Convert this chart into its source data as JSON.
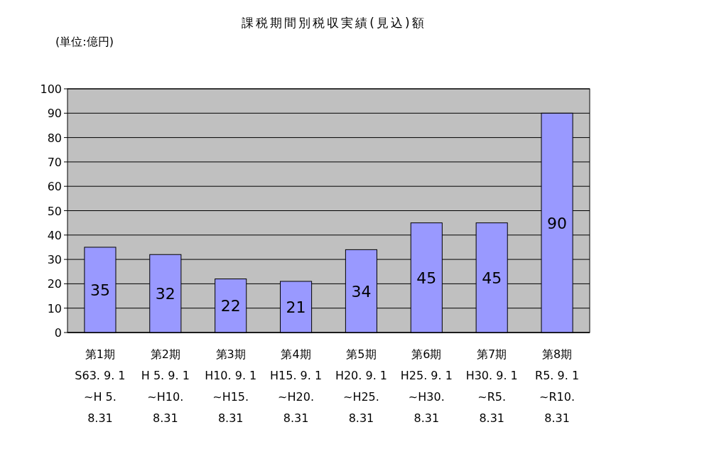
{
  "chart_data": {
    "type": "bar",
    "title": "課税期間別税収実績(見込)額",
    "ylabel": "(単位:億円)",
    "categories": [
      "第1期\nS63. 9. 1\n~H 5.\n8.31",
      "第2期\nH 5. 9. 1\n~H10.\n8.31",
      "第3期\nH10. 9. 1\n~H15.\n8.31",
      "第4期\nH15. 9. 1\n~H20.\n8.31",
      "第5期\nH20. 9. 1\n~H25.\n8.31",
      "第6期\nH25. 9. 1\n~H30.\n8.31",
      "第7期\nH30. 9. 1\n~R5.\n8.31",
      "第8期\nR5. 9. 1\n~R10.\n8.31"
    ],
    "values": [
      35,
      32,
      22,
      21,
      34,
      45,
      45,
      90
    ],
    "color": "#9999ff",
    "ylim": [
      0,
      100
    ],
    "yticks": [
      0,
      10,
      20,
      30,
      40,
      50,
      60,
      70,
      80,
      90,
      100
    ],
    "grid": "y",
    "data_labels": true
  }
}
